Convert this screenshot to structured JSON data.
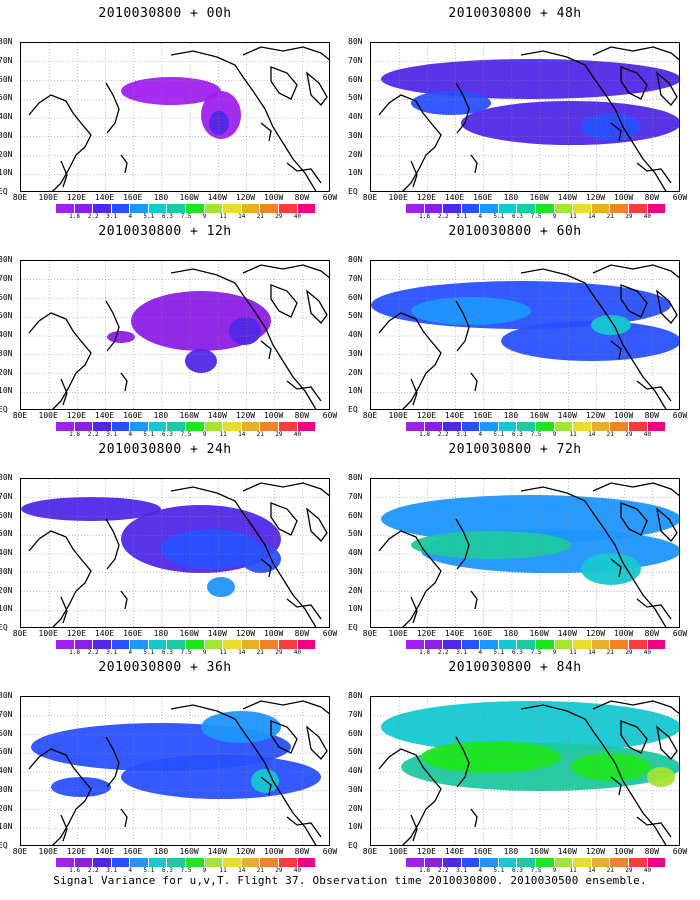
{
  "caption": "Signal Variance for u,v,T. Flight 37. Observation time 2010030800. 2010030500 ensemble.",
  "lat_labels": [
    "80N",
    "70N",
    "60N",
    "50N",
    "40N",
    "30N",
    "20N",
    "10N",
    "EQ"
  ],
  "lon_labels": [
    "80E",
    "100E",
    "120E",
    "140E",
    "160E",
    "180",
    "160W",
    "140W",
    "120W",
    "100W",
    "80W",
    "60W"
  ],
  "colorbar": {
    "labels": [
      "1.8",
      "2.2",
      "3.1",
      "4",
      "5.1",
      "6.3",
      "7.5",
      "9",
      "11",
      "14",
      "21",
      "29",
      "40"
    ],
    "labels_panel_last": [
      "1.6",
      "2.2",
      "3.1",
      "4",
      "5.1",
      "6.3",
      "7.5",
      "9",
      "11",
      "14",
      "21",
      "29",
      "40"
    ],
    "colors": [
      "#a020f0",
      "#8c1ee6",
      "#5028e6",
      "#2850ff",
      "#1e96ff",
      "#14c8d2",
      "#1ec8a0",
      "#1ee61e",
      "#a0e632",
      "#e6dc32",
      "#e6af2d",
      "#f08228",
      "#fa3c3c",
      "#f00082"
    ]
  },
  "panels": [
    {
      "title": "2010030800 + 00h",
      "intensity": 0
    },
    {
      "title": "2010030800 + 12h",
      "intensity": 1
    },
    {
      "title": "2010030800 + 24h",
      "intensity": 2
    },
    {
      "title": "2010030800 + 36h",
      "intensity": 3
    },
    {
      "title": "2010030800 + 48h",
      "intensity": 2
    },
    {
      "title": "2010030800 + 60h",
      "intensity": 3
    },
    {
      "title": "2010030800 + 72h",
      "intensity": 4
    },
    {
      "title": "2010030800 + 84h",
      "intensity": 5
    }
  ]
}
